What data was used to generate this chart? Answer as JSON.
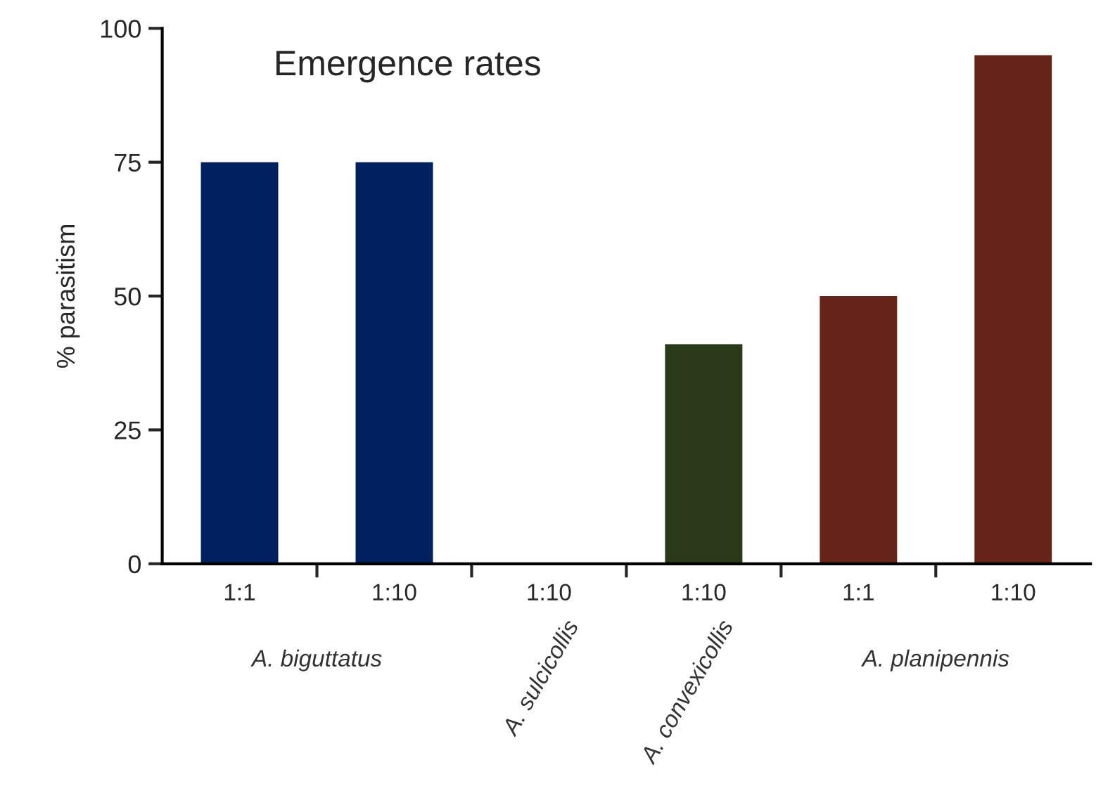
{
  "chart_data": {
    "type": "bar",
    "title": "Emergence rates",
    "ylabel": "% parasitism",
    "categories": [
      "1:1",
      "1:10",
      "1:10",
      "1:10",
      "1:1",
      "1:10"
    ],
    "values": [
      75,
      75,
      0,
      41,
      50,
      95
    ],
    "colors": [
      "#002060",
      "#002060",
      "#002060",
      "#283a17",
      "#65231a",
      "#65231a"
    ],
    "ylim": [
      0,
      100
    ],
    "yticks": [
      0,
      25,
      50,
      75,
      100
    ],
    "grid": false,
    "legend": false,
    "annotations": [
      "A. biguttatus",
      "A. sulcicollis",
      "A. convexicollis",
      "A. planipennis"
    ]
  }
}
